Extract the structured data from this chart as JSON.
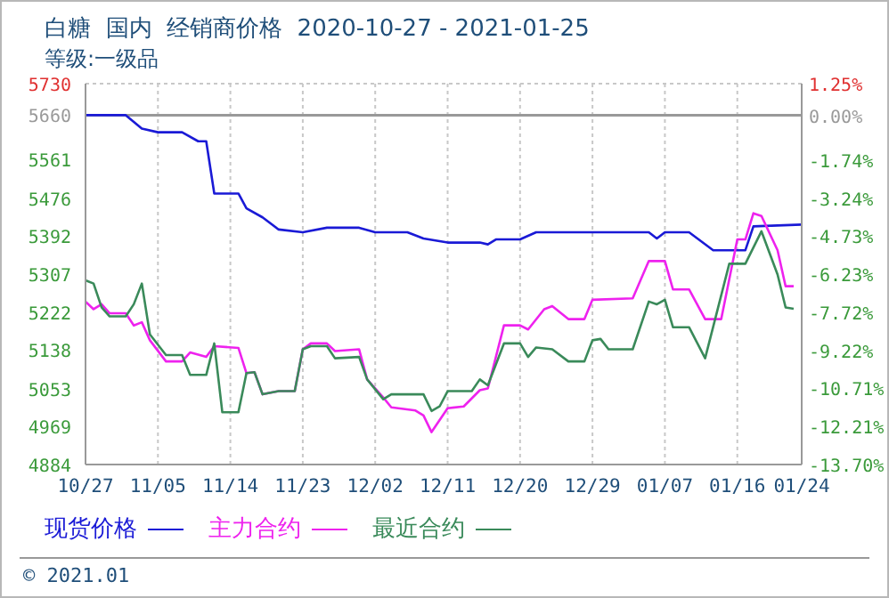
{
  "chart_data": {
    "type": "line",
    "title": "白糖  国内  经销商价格  2020-10-27 - 2021-01-25",
    "subtitle": "等级:一级品",
    "annotations": [
      "© 2021.01"
    ],
    "xlim": [
      "2020-10-27",
      "2021-01-24"
    ],
    "xticks": [
      {
        "value": "2020-10-27",
        "label": "10/27"
      },
      {
        "value": "2020-11-05",
        "label": "11/05"
      },
      {
        "value": "2020-11-14",
        "label": "11/14"
      },
      {
        "value": "2020-11-23",
        "label": "11/23"
      },
      {
        "value": "2020-12-02",
        "label": "12/02"
      },
      {
        "value": "2020-12-11",
        "label": "12/11"
      },
      {
        "value": "2020-12-20",
        "label": "12/20"
      },
      {
        "value": "2020-12-29",
        "label": "12/29"
      },
      {
        "value": "2021-01-07",
        "label": "01/07"
      },
      {
        "value": "2021-01-16",
        "label": "01/16"
      },
      {
        "value": "2021-01-24",
        "label": "01/24"
      }
    ],
    "ylim": [
      4884,
      5730
    ],
    "yticks": [
      4884,
      4969,
      5053,
      5138,
      5222,
      5307,
      5392,
      5476,
      5561,
      5660,
      5730
    ],
    "y2lim": [
      -13.7,
      1.25
    ],
    "y2ticks": [
      {
        "value": -13.7,
        "label": "-13.70%"
      },
      {
        "value": -12.21,
        "label": "-12.21%"
      },
      {
        "value": -10.71,
        "label": "-10.71%"
      },
      {
        "value": -9.22,
        "label": "-9.22%"
      },
      {
        "value": -7.72,
        "label": "-7.72%"
      },
      {
        "value": -6.23,
        "label": "-6.23%"
      },
      {
        "value": -4.73,
        "label": "-4.73%"
      },
      {
        "value": -3.24,
        "label": "-3.24%"
      },
      {
        "value": -1.74,
        "label": "-1.74%"
      },
      {
        "value": 0,
        "label": "0.00%"
      },
      {
        "value": 1.25,
        "label": "1.25%"
      }
    ],
    "ref_lines": [
      {
        "axis": "y",
        "value": 5660,
        "color": "#999999"
      }
    ],
    "grid": true,
    "legend": "bottom left",
    "marker": "none",
    "line_style": "solid",
    "series": [
      {
        "name": "现货价格",
        "color": "#1a1ad6",
        "x": [
          "2020-10-27",
          "2020-11-01",
          "2020-11-03",
          "2020-11-05",
          "2020-11-08",
          "2020-11-10",
          "2020-11-11",
          "2020-11-12",
          "2020-11-15",
          "2020-11-16",
          "2020-11-18",
          "2020-11-20",
          "2020-11-23",
          "2020-11-26",
          "2020-11-30",
          "2020-12-02",
          "2020-12-06",
          "2020-12-08",
          "2020-12-11",
          "2020-12-15",
          "2020-12-16",
          "2020-12-17",
          "2020-12-20",
          "2020-12-22",
          "2021-01-05",
          "2021-01-06",
          "2021-01-07",
          "2021-01-10",
          "2021-01-13",
          "2021-01-17",
          "2021-01-18",
          "2021-01-24"
        ],
        "values": [
          5660,
          5660,
          5630,
          5622,
          5622,
          5602,
          5602,
          5486,
          5486,
          5453,
          5433,
          5406,
          5400,
          5410,
          5410,
          5400,
          5400,
          5386,
          5377,
          5377,
          5373,
          5384,
          5384,
          5400,
          5400,
          5386,
          5400,
          5400,
          5360,
          5360,
          5413,
          5417
        ]
      },
      {
        "name": "主力合约",
        "color": "#ee22ee",
        "x": [
          "2020-10-27",
          "2020-10-28",
          "2020-10-29",
          "2020-10-30",
          "2020-11-01",
          "2020-11-02",
          "2020-11-03",
          "2020-11-04",
          "2020-11-06",
          "2020-11-08",
          "2020-11-09",
          "2020-11-11",
          "2020-11-12",
          "2020-11-15",
          "2020-11-16",
          "2020-11-17",
          "2020-11-18",
          "2020-11-20",
          "2020-11-22",
          "2020-11-23",
          "2020-11-24",
          "2020-11-26",
          "2020-11-27",
          "2020-11-30",
          "2020-12-01",
          "2020-12-03",
          "2020-12-04",
          "2020-12-07",
          "2020-12-08",
          "2020-12-09",
          "2020-12-11",
          "2020-12-13",
          "2020-12-15",
          "2020-12-16",
          "2020-12-18",
          "2020-12-20",
          "2020-12-21",
          "2020-12-23",
          "2020-12-24",
          "2020-12-26",
          "2020-12-28",
          "2020-12-29",
          "2021-01-03",
          "2021-01-05",
          "2021-01-07",
          "2021-01-08",
          "2021-01-10",
          "2021-01-12",
          "2021-01-14",
          "2021-01-16",
          "2021-01-17",
          "2021-01-18",
          "2021-01-19",
          "2021-01-21",
          "2021-01-22",
          "2021-01-23"
        ],
        "values": [
          5246,
          5229,
          5240,
          5220,
          5220,
          5193,
          5200,
          5160,
          5113,
          5113,
          5133,
          5123,
          5147,
          5143,
          5087,
          5089,
          5040,
          5047,
          5047,
          5140,
          5153,
          5153,
          5136,
          5140,
          5073,
          5033,
          5011,
          5004,
          4993,
          4956,
          5009,
          5013,
          5049,
          5053,
          5193,
          5193,
          5184,
          5229,
          5236,
          5207,
          5207,
          5250,
          5253,
          5336,
          5336,
          5273,
          5273,
          5207,
          5207,
          5384,
          5384,
          5442,
          5436,
          5360,
          5280,
          5280
        ]
      },
      {
        "name": "最近合约",
        "color": "#3a8a5a",
        "x": [
          "2020-10-27",
          "2020-10-28",
          "2020-10-29",
          "2020-10-30",
          "2020-11-01",
          "2020-11-02",
          "2020-11-03",
          "2020-11-04",
          "2020-11-06",
          "2020-11-08",
          "2020-11-09",
          "2020-11-11",
          "2020-11-12",
          "2020-11-13",
          "2020-11-15",
          "2020-11-16",
          "2020-11-17",
          "2020-11-18",
          "2020-11-20",
          "2020-11-22",
          "2020-11-23",
          "2020-11-24",
          "2020-11-26",
          "2020-11-27",
          "2020-11-30",
          "2020-12-01",
          "2020-12-03",
          "2020-12-04",
          "2020-12-08",
          "2020-12-09",
          "2020-12-10",
          "2020-12-11",
          "2020-12-14",
          "2020-12-15",
          "2020-12-16",
          "2020-12-18",
          "2020-12-20",
          "2020-12-21",
          "2020-12-22",
          "2020-12-24",
          "2020-12-26",
          "2020-12-28",
          "2020-12-29",
          "2020-12-30",
          "2020-12-31",
          "2021-01-03",
          "2021-01-05",
          "2021-01-06",
          "2021-01-07",
          "2021-01-08",
          "2021-01-10",
          "2021-01-12",
          "2021-01-15",
          "2021-01-17",
          "2021-01-19",
          "2021-01-21",
          "2021-01-22",
          "2021-01-23"
        ],
        "values": [
          5293,
          5286,
          5233,
          5213,
          5213,
          5240,
          5286,
          5173,
          5127,
          5127,
          5083,
          5083,
          5153,
          5000,
          5000,
          5087,
          5089,
          5040,
          5047,
          5047,
          5140,
          5147,
          5147,
          5120,
          5123,
          5073,
          5029,
          5040,
          5040,
          5003,
          5013,
          5047,
          5047,
          5073,
          5060,
          5153,
          5153,
          5123,
          5144,
          5140,
          5113,
          5113,
          5160,
          5163,
          5140,
          5140,
          5246,
          5240,
          5250,
          5189,
          5189,
          5120,
          5330,
          5330,
          5402,
          5306,
          5233,
          5230
        ]
      }
    ]
  }
}
